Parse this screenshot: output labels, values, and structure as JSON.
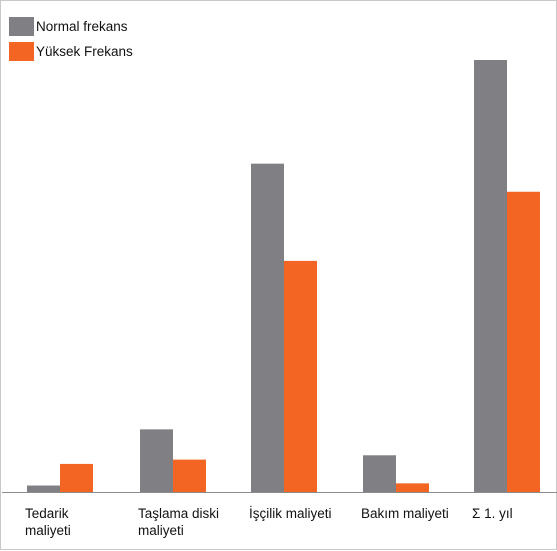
{
  "chart_data": {
    "type": "bar",
    "title": "",
    "xlabel": "",
    "ylabel": "",
    "categories": [
      [
        "Tedarik",
        "maliyeti"
      ],
      [
        "Taşlama diski",
        "maliyeti"
      ],
      [
        "İşçilik maliyeti"
      ],
      [
        "Bakım maliyeti"
      ],
      [
        "Σ 1. yıl"
      ]
    ],
    "series": [
      {
        "name": "Normal frekans",
        "color": "#808084",
        "values": [
          1.5,
          14.5,
          76,
          8.5,
          100
        ]
      },
      {
        "name": "Yüksek Frekans",
        "color": "#f26522",
        "values": [
          6.5,
          7.5,
          53.5,
          2,
          69.5
        ]
      }
    ],
    "ylim": [
      0,
      100
    ],
    "grid": false,
    "legend_position": "top-left"
  }
}
